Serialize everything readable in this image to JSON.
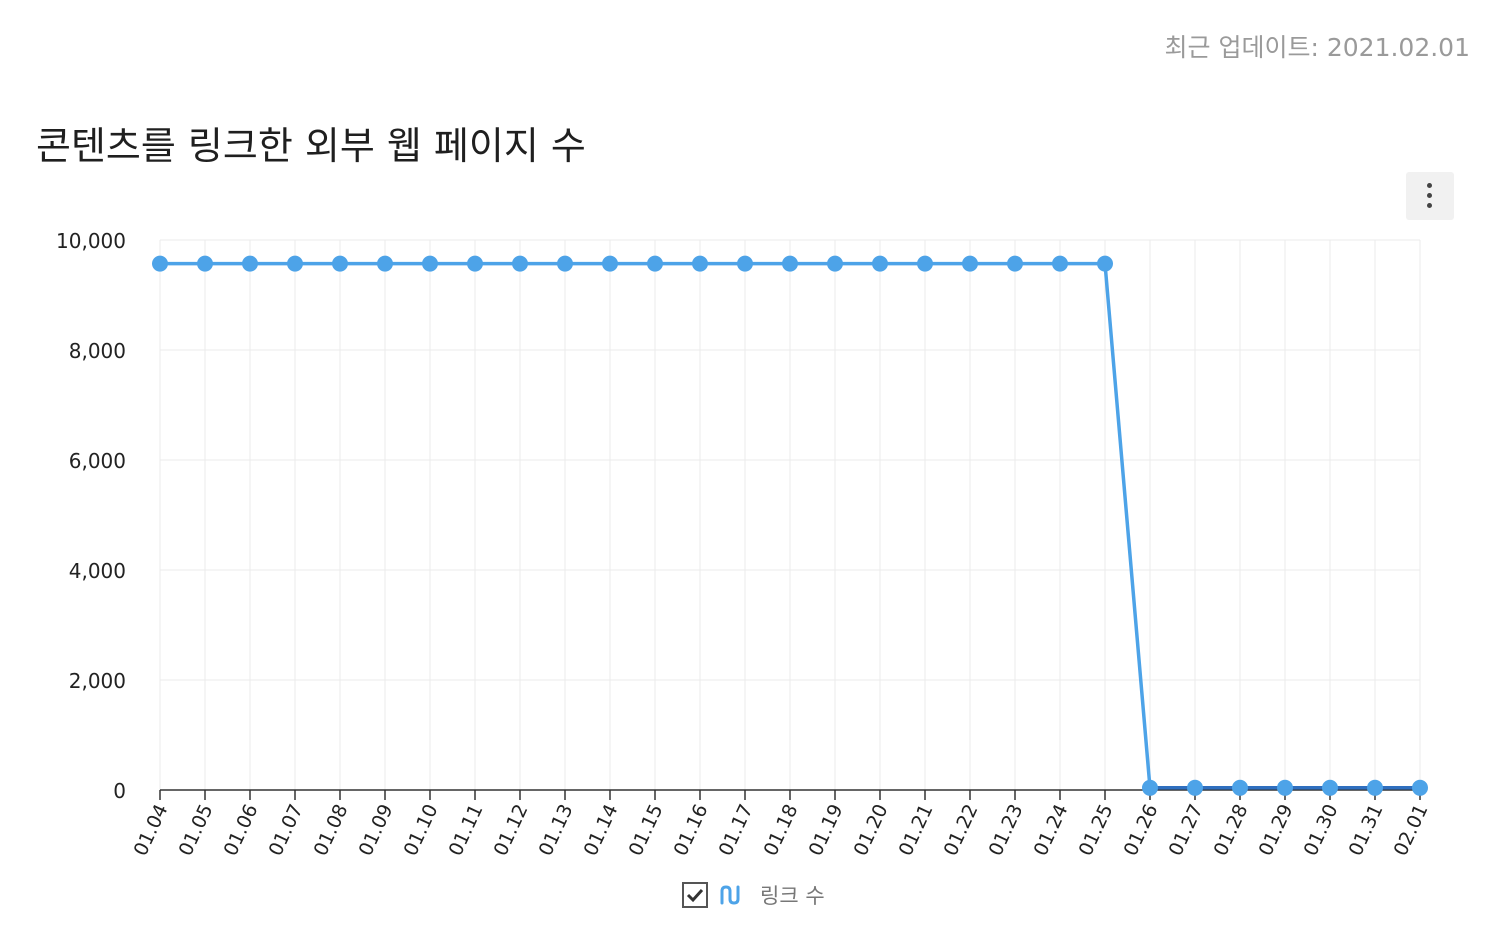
{
  "header": {
    "updated": "최근 업데이트: 2021.02.01",
    "title": "콘텐츠를 링크한 외부 웹 페이지 수"
  },
  "colors": {
    "series": "#4da3e8",
    "series_dark": "#2f6fbf",
    "grid": "#ebebeb",
    "axis": "#333333"
  },
  "icons": {
    "menu": "more-vertical-icon",
    "legend_check": "checkbox-checked-icon",
    "legend_series": "line-series-icon"
  },
  "legend": {
    "label": "링크 수",
    "checked": true
  },
  "chart_data": {
    "type": "line",
    "title": "콘텐츠를 링크한 외부 웹 페이지 수",
    "x": [
      "01.04",
      "01.05",
      "01.06",
      "01.07",
      "01.08",
      "01.09",
      "01.10",
      "01.11",
      "01.12",
      "01.13",
      "01.14",
      "01.15",
      "01.16",
      "01.17",
      "01.18",
      "01.19",
      "01.20",
      "01.21",
      "01.22",
      "01.23",
      "01.24",
      "01.25",
      "01.26",
      "01.27",
      "01.28",
      "01.29",
      "01.30",
      "01.31",
      "02.01"
    ],
    "series": [
      {
        "name": "링크 수",
        "values": [
          9570,
          9570,
          9570,
          9570,
          9570,
          9570,
          9570,
          9570,
          9570,
          9570,
          9570,
          9570,
          9570,
          9570,
          9570,
          9570,
          9570,
          9570,
          9570,
          9570,
          9570,
          9570,
          40,
          40,
          40,
          40,
          40,
          40,
          40
        ]
      }
    ],
    "ylim": [
      0,
      10000
    ],
    "yticks": [
      0,
      2000,
      4000,
      6000,
      8000,
      10000
    ],
    "ytick_labels": [
      "0",
      "2,000",
      "4,000",
      "6,000",
      "8,000",
      "10,000"
    ],
    "grid": true,
    "legend_position": "bottom"
  }
}
